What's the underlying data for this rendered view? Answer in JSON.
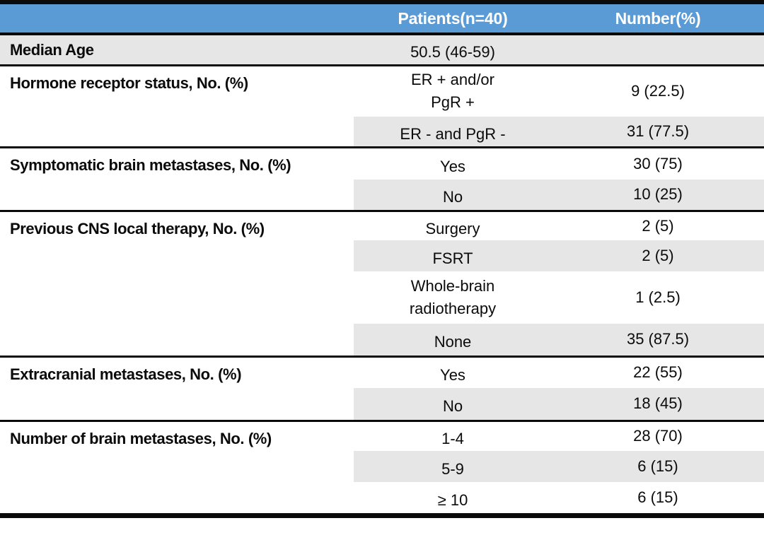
{
  "table": {
    "colors": {
      "header_bg": "#5B9BD5",
      "header_text": "#FFFFFF",
      "row_shade": "#E7E6E6",
      "rule": "#0A0A0A"
    },
    "header": {
      "col1": "",
      "col2": "Patients(n=40)",
      "col3": "Number(%)"
    },
    "sections": [
      {
        "label": "Median Age",
        "rows": [
          {
            "value": "50.5 (46-59)",
            "number": ""
          }
        ]
      },
      {
        "label": "Hormone receptor status, No. (%)",
        "rows": [
          {
            "value": "ER + and/or",
            "value2": "PgR +",
            "number": "9 (22.5)"
          },
          {
            "value": "ER - and PgR -",
            "number": "31 (77.5)"
          }
        ]
      },
      {
        "label": "Symptomatic brain metastases, No. (%)",
        "rows": [
          {
            "value": "Yes",
            "number": "30 (75)"
          },
          {
            "value": "No",
            "number": "10 (25)"
          }
        ]
      },
      {
        "label": "Previous CNS local therapy, No. (%)",
        "rows": [
          {
            "value": "Surgery",
            "number": "2 (5)"
          },
          {
            "value": "FSRT",
            "number": "2 (5)"
          },
          {
            "value": "Whole-brain",
            "value2": "radiotherapy",
            "number": "1 (2.5)"
          },
          {
            "value": "None",
            "number": "35 (87.5)"
          }
        ]
      },
      {
        "label": "Extracranial metastases, No. (%)",
        "rows": [
          {
            "value": "Yes",
            "number": "22 (55)"
          },
          {
            "value": "No",
            "number": "18 (45)"
          }
        ]
      },
      {
        "label": "Number of brain metastases, No. (%)",
        "rows": [
          {
            "value": "1-4",
            "number": "28 (70)"
          },
          {
            "value": "5-9",
            "number": "6 (15)"
          },
          {
            "value": "≥ 10",
            "number": "6 (15)"
          }
        ]
      }
    ]
  }
}
